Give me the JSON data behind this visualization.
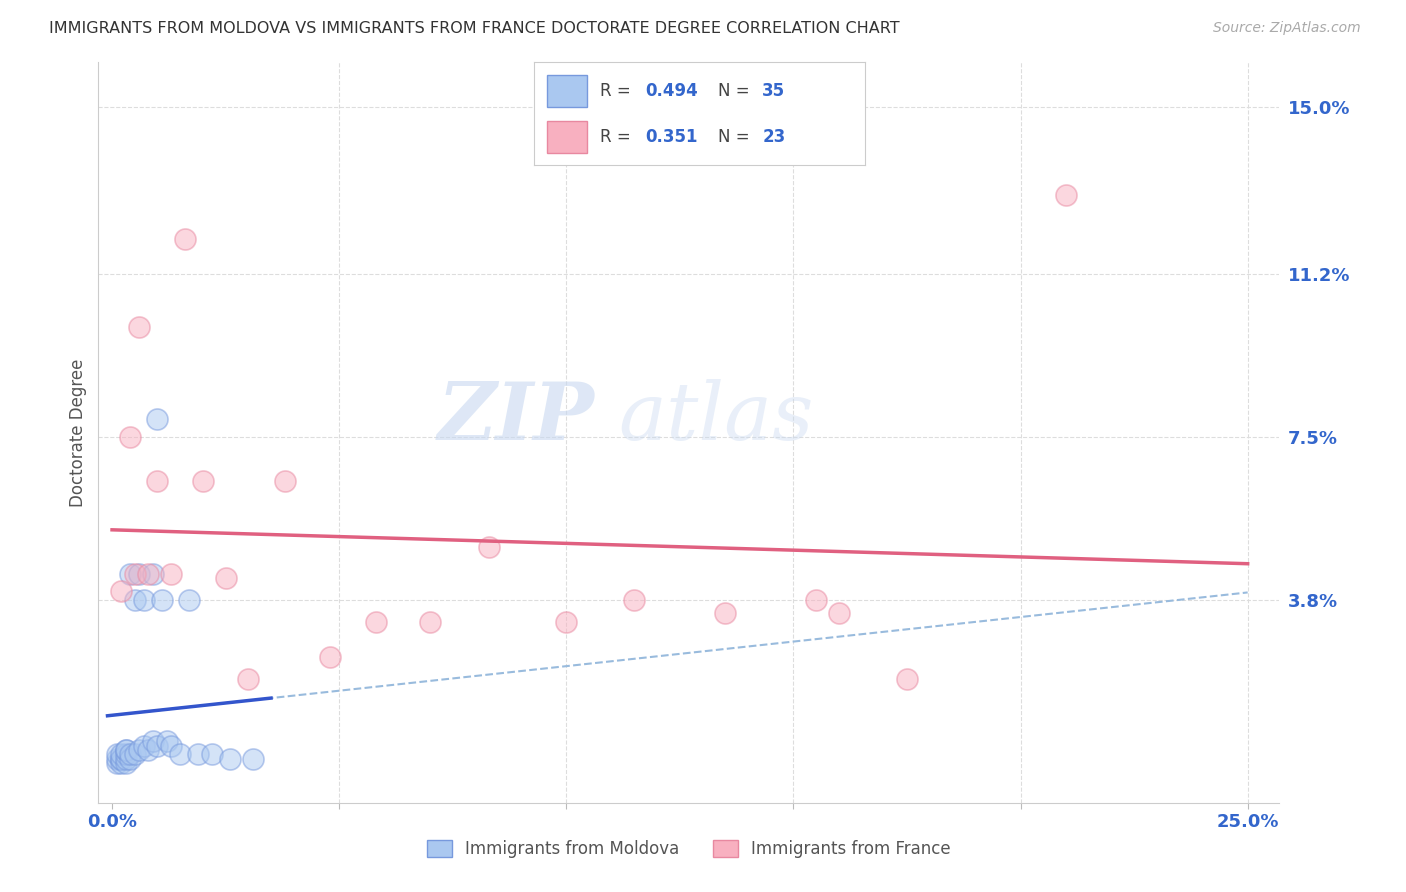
{
  "title": "IMMIGRANTS FROM MOLDOVA VS IMMIGRANTS FROM FRANCE DOCTORATE DEGREE CORRELATION CHART",
  "source": "Source: ZipAtlas.com",
  "ylabel": "Doctorate Degree",
  "r_moldova": "0.494",
  "n_moldova": "35",
  "r_france": "0.351",
  "n_france": "23",
  "moldova_face_color": "#aac8f0",
  "moldova_edge_color": "#7799dd",
  "france_face_color": "#f8b0c0",
  "france_edge_color": "#e888a0",
  "moldova_line_color": "#3355cc",
  "france_line_color": "#e06080",
  "dash_line_color": "#99bbdd",
  "axis_label_color": "#3366cc",
  "ytick_vals": [
    0.038,
    0.075,
    0.112,
    0.15
  ],
  "ytick_labels": [
    "3.8%",
    "7.5%",
    "11.2%",
    "15.0%"
  ],
  "watermark_zip": "ZIP",
  "watermark_atlas": "atlas",
  "background_color": "#ffffff",
  "grid_color": "#dddddd",
  "moldova_x": [
    0.001,
    0.001,
    0.001,
    0.002,
    0.002,
    0.002,
    0.002,
    0.003,
    0.003,
    0.003,
    0.003,
    0.003,
    0.004,
    0.004,
    0.004,
    0.005,
    0.005,
    0.006,
    0.006,
    0.007,
    0.007,
    0.008,
    0.009,
    0.009,
    0.01,
    0.01,
    0.011,
    0.012,
    0.013,
    0.015,
    0.017,
    0.019,
    0.022,
    0.026,
    0.031
  ],
  "moldova_y": [
    0.001,
    0.002,
    0.003,
    0.001,
    0.002,
    0.002,
    0.003,
    0.001,
    0.002,
    0.003,
    0.004,
    0.004,
    0.002,
    0.003,
    0.044,
    0.003,
    0.038,
    0.004,
    0.044,
    0.005,
    0.038,
    0.004,
    0.006,
    0.044,
    0.005,
    0.079,
    0.038,
    0.006,
    0.005,
    0.003,
    0.038,
    0.003,
    0.003,
    0.002,
    0.002
  ],
  "france_x": [
    0.002,
    0.004,
    0.005,
    0.006,
    0.008,
    0.01,
    0.013,
    0.016,
    0.02,
    0.025,
    0.03,
    0.038,
    0.048,
    0.058,
    0.07,
    0.083,
    0.1,
    0.115,
    0.135,
    0.155,
    0.175,
    0.21,
    0.16
  ],
  "france_y": [
    0.04,
    0.075,
    0.044,
    0.1,
    0.044,
    0.065,
    0.044,
    0.12,
    0.065,
    0.043,
    0.02,
    0.065,
    0.025,
    0.033,
    0.033,
    0.05,
    0.033,
    0.038,
    0.035,
    0.038,
    0.02,
    0.13,
    0.035
  ]
}
